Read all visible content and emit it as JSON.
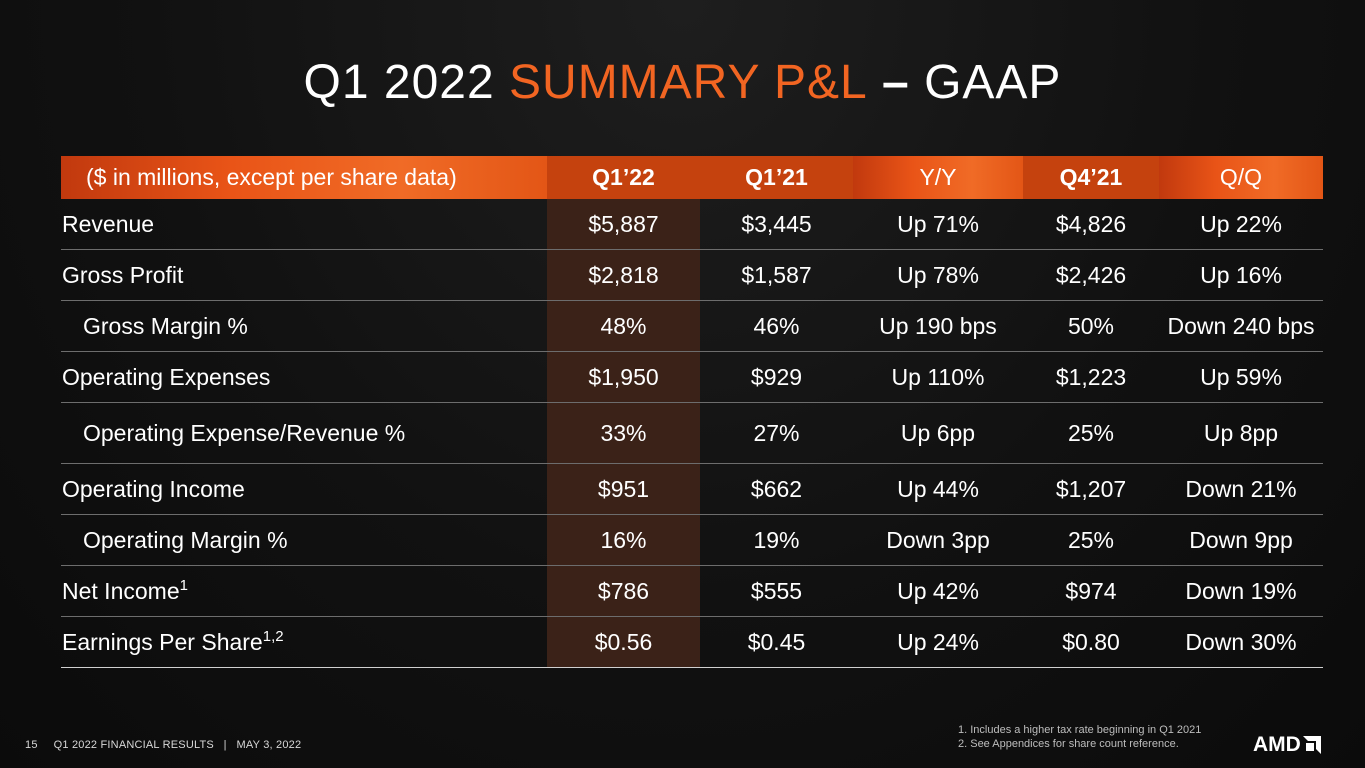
{
  "title": {
    "part1": "Q1 2022 ",
    "accent": "SUMMARY P&L",
    "dash": " – ",
    "part2": "GAAP"
  },
  "colors": {
    "accent": "#f26522",
    "header_gradient_start": "#c1390e",
    "header_gradient_end": "#f06b26",
    "highlight_column": "#3b2218",
    "background": "#111111"
  },
  "table": {
    "columns": [
      "($ in millions, except per share data)",
      "Q1’22",
      "Q1’21",
      "Y/Y",
      "Q4’21",
      "Q/Q"
    ],
    "rows": [
      {
        "label": "Revenue",
        "sup": "",
        "q122": "$5,887",
        "q121": "$3,445",
        "yy": "Up 71%",
        "q421": "$4,826",
        "qq": "Up 22%"
      },
      {
        "label": "Gross Profit",
        "sup": "",
        "q122": "$2,818",
        "q121": "$1,587",
        "yy": "Up 78%",
        "q421": "$2,426",
        "qq": "Up 16%"
      },
      {
        "label": "Gross Margin %",
        "sup": "",
        "q122": "48%",
        "q121": "46%",
        "yy": "Up 190 bps",
        "q421": "50%",
        "qq": "Down 240 bps"
      },
      {
        "label": "Operating Expenses",
        "sup": "",
        "q122": "$1,950",
        "q121": "$929",
        "yy": "Up 110%",
        "q421": "$1,223",
        "qq": "Up 59%"
      },
      {
        "label": "Operating Expense/Revenue %",
        "sup": "",
        "q122": "33%",
        "q121": "27%",
        "yy": "Up 6pp",
        "q421": "25%",
        "qq": "Up 8pp"
      },
      {
        "label": "Operating Income",
        "sup": "",
        "q122": "$951",
        "q121": "$662",
        "yy": "Up 44%",
        "q421": "$1,207",
        "qq": "Down 21%"
      },
      {
        "label": "Operating Margin %",
        "sup": "",
        "q122": "16%",
        "q121": "19%",
        "yy": "Down 3pp",
        "q421": "25%",
        "qq": "Down 9pp"
      },
      {
        "label": "Net Income",
        "sup": "1",
        "q122": "$786",
        "q121": "$555",
        "yy": "Up 42%",
        "q421": "$974",
        "qq": "Down 19%"
      },
      {
        "label": "Earnings Per Share",
        "sup": "1,2",
        "q122": "$0.56",
        "q121": "$0.45",
        "yy": "Up 24%",
        "q421": "$0.80",
        "qq": "Down 30%"
      }
    ]
  },
  "footer": {
    "page_number": "15",
    "text": "Q1 2022 FINANCIAL RESULTS   |   MAY 3, 2022"
  },
  "footnotes": [
    "1. Includes a higher tax rate beginning in Q1 2021",
    "2. See Appendices for share count reference."
  ],
  "logo": {
    "text": "AMD",
    "icon": "amd-arrow-logo-icon"
  }
}
